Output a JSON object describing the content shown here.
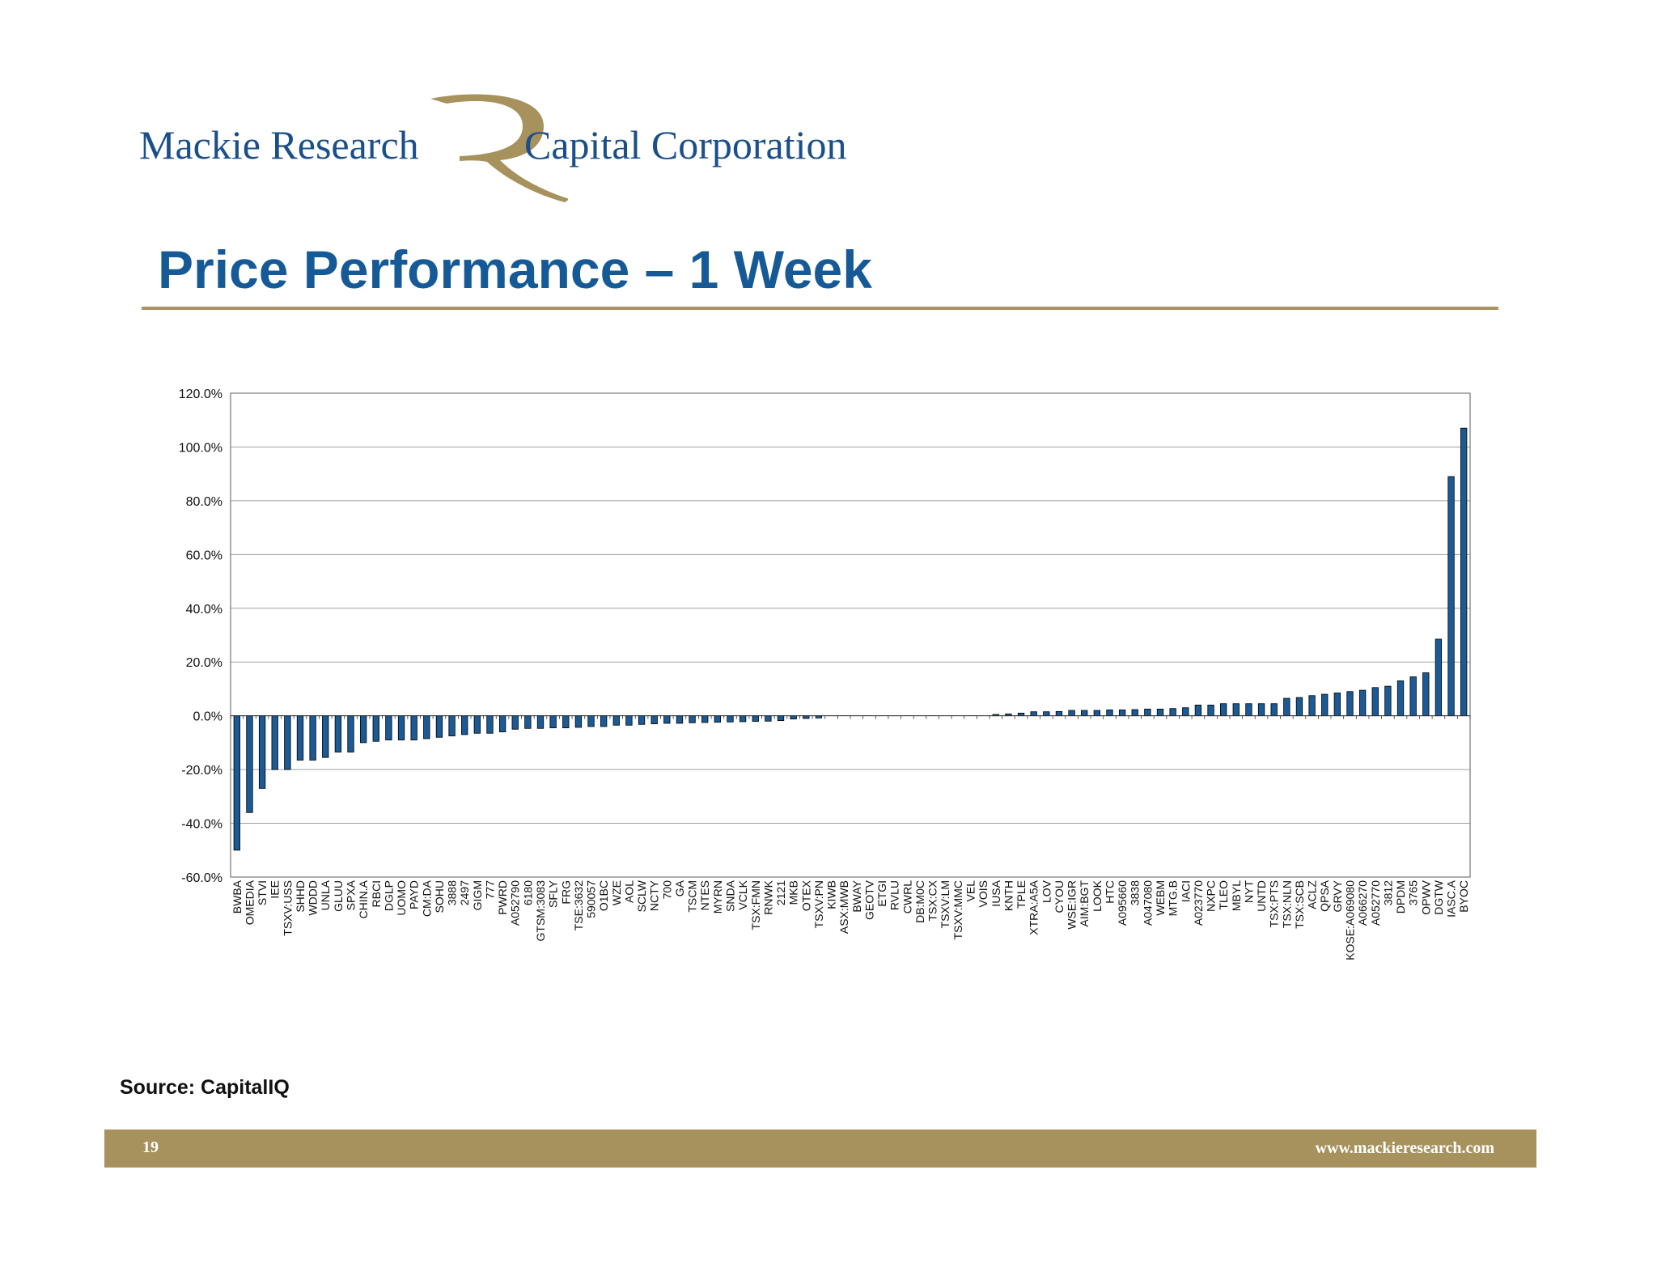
{
  "logo": {
    "left_text": "Mackie Research",
    "right_text": "Capital Corporation",
    "mark": "R"
  },
  "title": "Price Performance – 1 Week",
  "source": "Source: CapitalIQ",
  "footer": {
    "page": "19",
    "url": "www.mackieresearch.com"
  },
  "colors": {
    "brand_blue": "#155a96",
    "gold": "#a7925d",
    "bar": "#1b5a94"
  },
  "chart_data": {
    "type": "bar",
    "title": "",
    "xlabel": "",
    "ylabel": "",
    "ylim": [
      -60,
      120
    ],
    "yticks": [
      "120.0%",
      "100.0%",
      "80.0%",
      "60.0%",
      "40.0%",
      "20.0%",
      "0.0%",
      "-20.0%",
      "-40.0%",
      "-60.0%"
    ],
    "grid": true,
    "categories": [
      "BWBA",
      "OMEDIA",
      "STVI",
      "IEE",
      "TSXV:USS",
      "SHHD",
      "WDDD",
      "UNLA",
      "GLUU",
      "SPXA",
      "CHIN.A",
      "RBCI",
      "DGLP",
      "UOMO",
      "PAYD",
      "CM:DA",
      "SOHU",
      "3888",
      "2497",
      "GIGM",
      "777",
      "PWRD",
      "A052790",
      "6180",
      "GTSM:3083",
      "SFLY",
      "FRG",
      "TSE:3632",
      "590057",
      "O1BC",
      "WZE",
      "AOL",
      "SCLW",
      "NCTY",
      "700",
      "GA",
      "TSCM",
      "NTES",
      "MYRN",
      "SNDA",
      "VCLK",
      "TSX:FMN",
      "RNWK",
      "2121",
      "MKB",
      "OTEX",
      "TSXV:PN",
      "KIWB",
      "ASX:MWB",
      "BWAY",
      "GEOTV",
      "ETGI",
      "RVLU",
      "CWRL",
      "DB:M0C",
      "TSX:CX",
      "TSXV:LM",
      "TSXV:MMC",
      "VEL",
      "VOIS",
      "IUSA",
      "KNTH",
      "TPLE",
      "XTRA:A5A",
      "LOV",
      "CYOU",
      "WSE:IGR",
      "AIM:BGT",
      "LOOK",
      "HTC",
      "A095660",
      "3838",
      "A047080",
      "WEBM",
      "MTG.B",
      "IACI",
      "A023770",
      "NXPC",
      "TLEO",
      "MBYL",
      "NYT",
      "UNTD",
      "TSX:PTS",
      "TSX:NLN",
      "TSX:SCB",
      "ACLZ",
      "QPSA",
      "GRVY",
      "KOSE:A069080",
      "A066270",
      "A052770",
      "3812",
      "DPDM",
      "3765",
      "OPWV",
      "DGTW",
      "IASC.A",
      "BYOC"
    ],
    "values": [
      -50.0,
      -36.0,
      -27.0,
      -20.0,
      -20.0,
      -16.5,
      -16.5,
      -15.5,
      -13.5,
      -13.5,
      -10.0,
      -9.5,
      -9.0,
      -9.0,
      -9.0,
      -8.5,
      -8.0,
      -7.5,
      -7.0,
      -6.5,
      -6.5,
      -6.0,
      -5.0,
      -4.7,
      -4.7,
      -4.5,
      -4.5,
      -4.3,
      -4.0,
      -4.0,
      -3.5,
      -3.5,
      -3.2,
      -3.0,
      -2.8,
      -2.8,
      -2.6,
      -2.5,
      -2.4,
      -2.3,
      -2.2,
      -2.1,
      -2.0,
      -1.8,
      -1.2,
      -1.0,
      -0.8,
      0.0,
      0.0,
      0.0,
      0.0,
      0.0,
      0.0,
      0.0,
      0.0,
      0.0,
      0.0,
      0.0,
      0.0,
      0.0,
      0.5,
      0.7,
      1.0,
      1.5,
      1.5,
      1.6,
      2.0,
      2.0,
      2.0,
      2.2,
      2.2,
      2.3,
      2.5,
      2.5,
      2.7,
      3.0,
      4.0,
      4.0,
      4.5,
      4.5,
      4.5,
      4.5,
      4.5,
      6.5,
      6.8,
      7.5,
      8.0,
      8.5,
      9.0,
      9.5,
      10.5,
      11.0,
      13.0,
      14.5,
      16.0,
      28.5,
      89.0,
      107.0
    ]
  }
}
